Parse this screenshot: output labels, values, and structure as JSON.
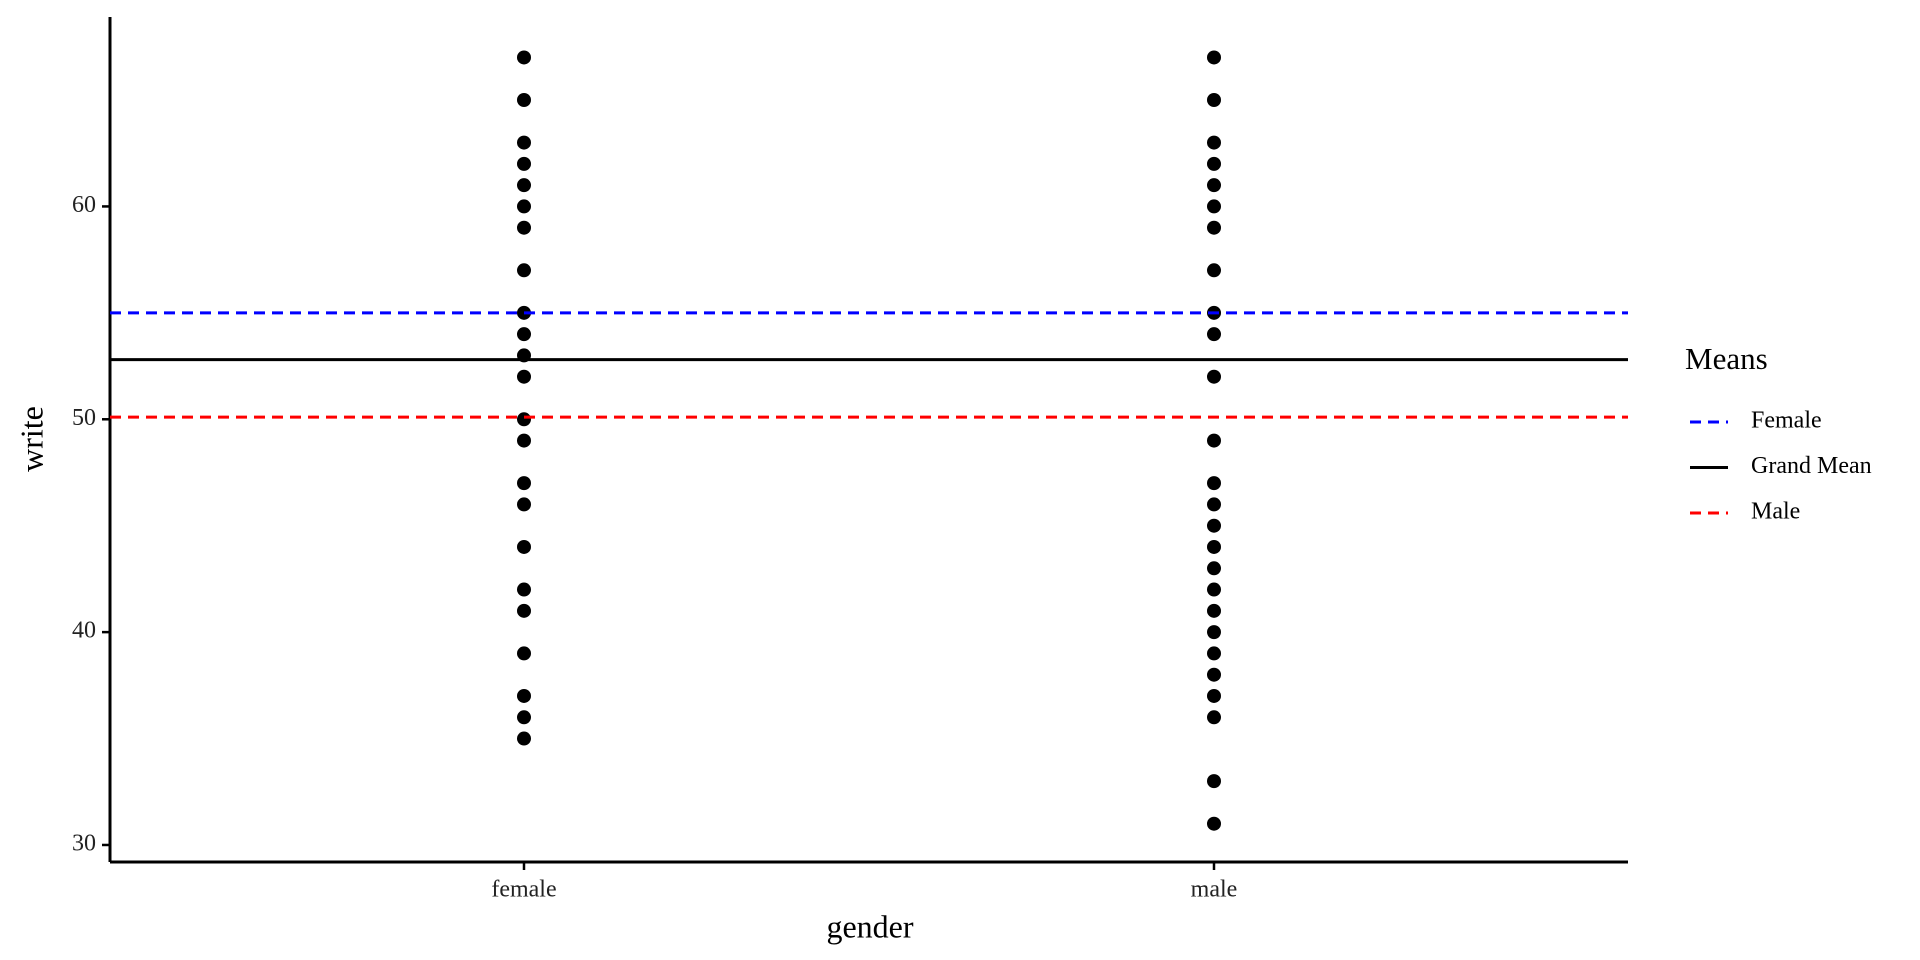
{
  "chart_data": {
    "type": "strip",
    "x_label": "gender",
    "y_label": "write",
    "categories": [
      "female",
      "male"
    ],
    "groups": [
      {
        "values": [
          67,
          65,
          63,
          62,
          61,
          60,
          59,
          57,
          55,
          54,
          53,
          52,
          50,
          49,
          47,
          46,
          44,
          42,
          41,
          39,
          37,
          36,
          35
        ]
      },
      {
        "values": [
          67,
          65,
          63,
          62,
          61,
          60,
          59,
          57,
          55,
          54,
          52,
          49,
          47,
          46,
          45,
          44,
          43,
          42,
          41,
          40,
          39,
          38,
          37,
          36,
          33,
          31
        ]
      }
    ],
    "point_color": "#000000",
    "hlines": [
      {
        "name": "Female",
        "value": 55.0,
        "color": "#0000ff",
        "dashed": true
      },
      {
        "name": "Grand Mean",
        "value": 52.8,
        "color": "#000000",
        "dashed": false
      },
      {
        "name": "Male",
        "value": 50.1,
        "color": "#ff0000",
        "dashed": true
      }
    ],
    "legend_title": "Means",
    "ylim": [
      29.2,
      68.9
    ],
    "yticks": [
      30,
      40,
      50,
      60
    ],
    "grid": false
  }
}
